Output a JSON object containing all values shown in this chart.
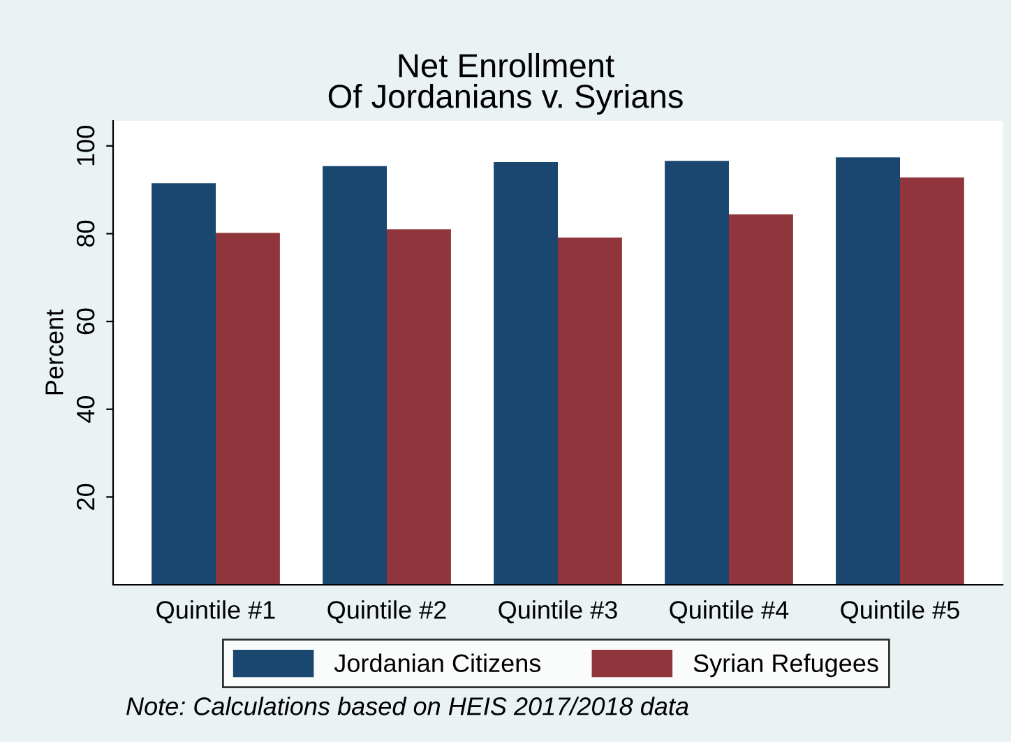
{
  "chart_data": {
    "type": "bar",
    "title": "Net Enrollment\nOf Jordanians v. Syrians",
    "ylabel": "Percent",
    "categories": [
      "Quintile #1",
      "Quintile #2",
      "Quintile #3",
      "Quintile #4",
      "Quintile #5"
    ],
    "series": [
      {
        "name": "Jordanian Citizens",
        "color": "#1a476f",
        "values": [
          91.5,
          95.4,
          96.3,
          96.6,
          97.4
        ]
      },
      {
        "name": "Syrian Refugees",
        "color": "#90353b",
        "values": [
          80.2,
          81.0,
          79.1,
          84.4,
          92.8
        ]
      }
    ],
    "ylim": [
      0,
      105.7
    ],
    "yticks": [
      20,
      40,
      60,
      80,
      100
    ],
    "grid": false,
    "legend": "bottom",
    "annotations": [
      "Note: Calculations based on HEIS 2017/2018 data"
    ]
  }
}
